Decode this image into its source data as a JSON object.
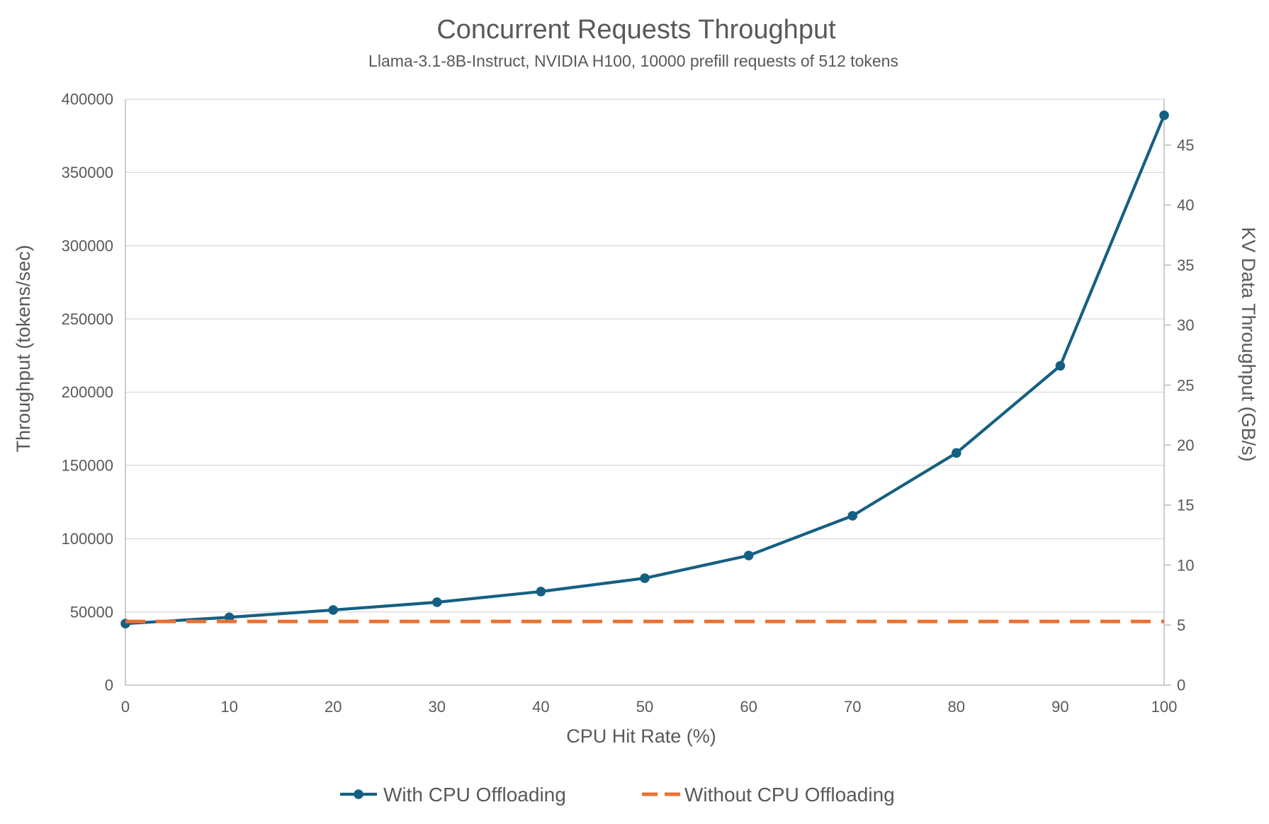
{
  "chart_data": {
    "type": "line",
    "title": "Concurrent Requests Throughput",
    "subtitle": "Llama-3.1-8B-Instruct, NVIDIA H100, 10000 prefill requests of 512 tokens",
    "xlabel": "CPU Hit Rate (%)",
    "ylabel": "Throughput (tokens/sec)",
    "ylabel_secondary": "KV Data Throughput (GB/s)",
    "x": [
      0,
      10,
      20,
      30,
      40,
      50,
      60,
      70,
      80,
      90,
      100
    ],
    "series": [
      {
        "name": "With CPU Offloading",
        "style": "solid-markers",
        "color": "#156082",
        "values": [
          42000,
          46300,
          51300,
          56600,
          63900,
          73000,
          88500,
          115600,
          158500,
          218000,
          389000
        ]
      },
      {
        "name": "Without CPU Offloading",
        "style": "dashed",
        "color": "#E97132",
        "values": [
          43500,
          43500,
          43500,
          43500,
          43500,
          43500,
          43500,
          43500,
          43500,
          43500,
          43500
        ]
      }
    ],
    "x_axis": {
      "min": 0,
      "max": 100,
      "tick_values": [
        0,
        10,
        20,
        30,
        40,
        50,
        60,
        70,
        80,
        90,
        100
      ],
      "tick_labels": [
        "0",
        "10",
        "20",
        "30",
        "40",
        "50",
        "60",
        "70",
        "80",
        "90",
        "100"
      ]
    },
    "left_axis": {
      "min": 0,
      "max": 400000,
      "gridline_step": 50000,
      "tick_values": [
        0,
        50000,
        100000,
        150000,
        200000,
        250000,
        300000,
        350000,
        400000
      ],
      "tick_labels": [
        "0",
        "50000",
        "100000",
        "150000",
        "200000",
        "250000",
        "300000",
        "350000",
        "400000"
      ]
    },
    "right_axis": {
      "min": 0,
      "max_gbps": 48.8,
      "tokens_per_gbps": 8192,
      "tick_values": [
        0,
        5,
        10,
        15,
        20,
        25,
        30,
        35,
        40,
        45
      ],
      "tick_labels": [
        "0",
        "5",
        "10",
        "15",
        "20",
        "25",
        "30",
        "35",
        "40",
        "45"
      ]
    },
    "grid": "horizontal",
    "legend_position": "bottom",
    "colors": {
      "series_primary": "#156082",
      "series_secondary": "#E97132",
      "gridline": "#D9D9D9",
      "axis_line": "#BFBFBF",
      "text": "#595959"
    }
  }
}
